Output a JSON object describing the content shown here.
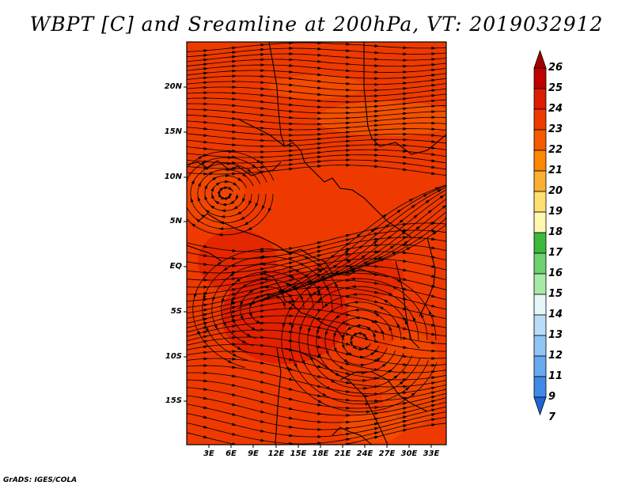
{
  "title": "WBPT [C] and Sreamline at 200hPa, VT: 2019032912",
  "credit": "GrADS: IGES/COLA",
  "lat_labels": [
    "20N",
    "15N",
    "10N",
    "5N",
    "EQ",
    "5S",
    "10S",
    "15S"
  ],
  "lon_labels": [
    "3E",
    "6E",
    "9E",
    "12E",
    "15E",
    "18E",
    "21E",
    "24E",
    "27E",
    "30E",
    "33E"
  ],
  "colorbar": {
    "labels": [
      "26",
      "25",
      "24",
      "23",
      "22",
      "21",
      "20",
      "19",
      "18",
      "17",
      "16",
      "15",
      "14",
      "13",
      "12",
      "11",
      "9",
      "7"
    ],
    "colors": [
      "#a50000",
      "#c00000",
      "#dd1b00",
      "#ee3a00",
      "#f55a00",
      "#fb8800",
      "#fbb030",
      "#fde070",
      "#fff8b0",
      "#3cb83c",
      "#6fd16f",
      "#a9eaa9",
      "#e5f7f7",
      "#b9dcf8",
      "#8fc6f6",
      "#66aaf0",
      "#3f8ae6",
      "#1e64d8"
    ]
  },
  "map": {
    "field_color": "#ee3a00",
    "streamline_color": "#000000"
  }
}
